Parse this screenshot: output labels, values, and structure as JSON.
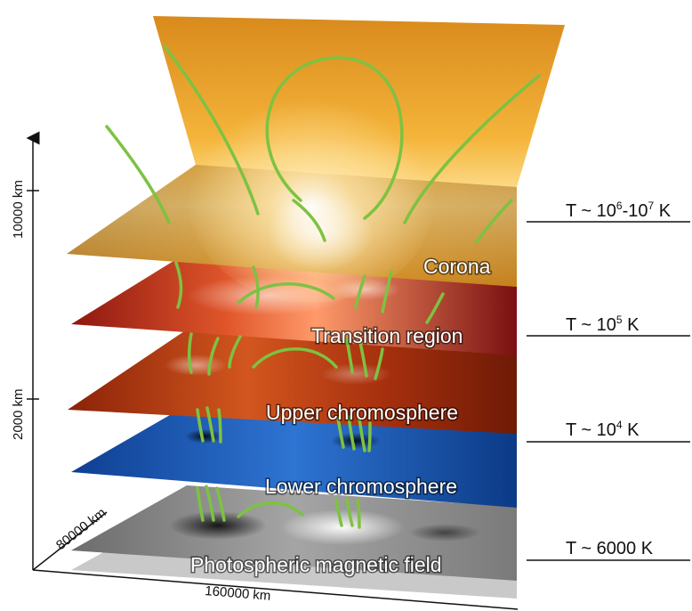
{
  "layers": [
    {
      "id": "corona",
      "label": "Corona"
    },
    {
      "id": "transition",
      "label": "Transition region"
    },
    {
      "id": "upper",
      "label": "Upper chromosphere"
    },
    {
      "id": "lower",
      "label": "Lower chromosphere"
    },
    {
      "id": "photo",
      "label": "Photospheric magnetic field"
    }
  ],
  "temperatures": {
    "corona": {
      "base": "T ~ 10",
      "exp1": "6",
      "mid": "-10",
      "exp2": "7",
      "unit": " K"
    },
    "transition": {
      "base": "T ~ 10",
      "exp1": "5",
      "unit": " K"
    },
    "chromosphere": {
      "base": "T ~ 10",
      "exp1": "4",
      "unit": " K"
    },
    "photosphere": {
      "text": "T ~ 6000 K"
    }
  },
  "axes": {
    "height_upper": "10000 km",
    "height_lower": "2000 km",
    "depth": "80000 km",
    "width": "160000 km"
  },
  "colors": {
    "corona_bright": "#ffd36a",
    "corona_dark": "#a86a10",
    "transition": "#c8281a",
    "upper_chromosphere": "#b63a12",
    "lower_chromosphere": "#1a56b8",
    "photosphere": "#8a8a8a",
    "field_lines": "#7dc242"
  }
}
